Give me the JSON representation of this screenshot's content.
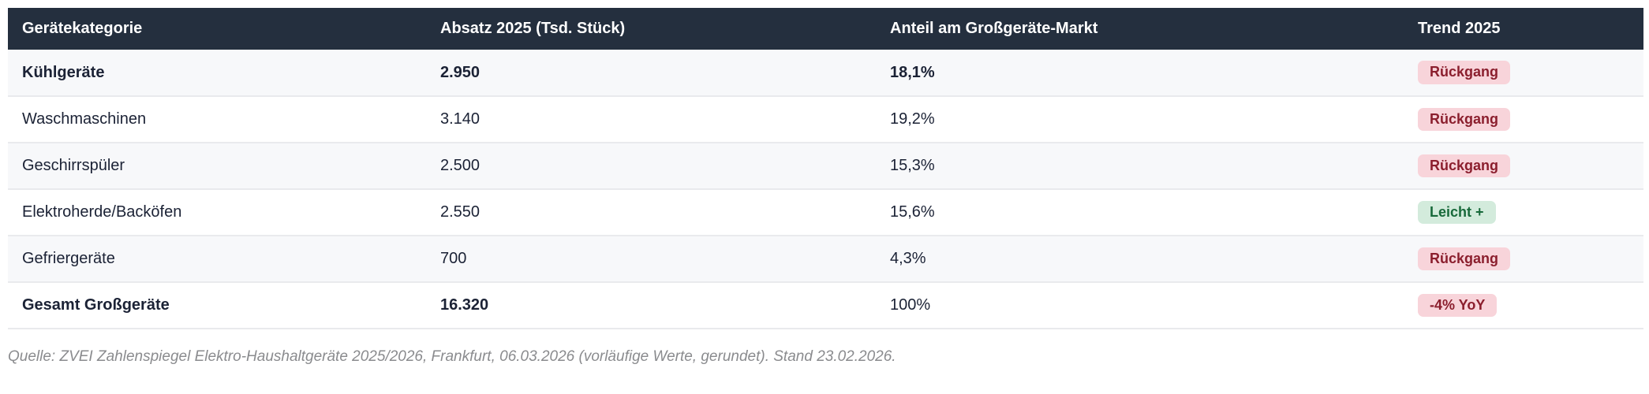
{
  "chart_data": {
    "type": "table",
    "columns": [
      "Gerätekategorie",
      "Absatz 2025 (Tsd. Stück)",
      "Anteil am Großgeräte-Markt",
      "Trend 2025"
    ],
    "rows": [
      {
        "category": "Kühlgeräte",
        "sales_thousand_units": "2.950",
        "market_share": "18,1%",
        "trend": "Rückgang",
        "trend_variant": "negative"
      },
      {
        "category": "Waschmaschinen",
        "sales_thousand_units": "3.140",
        "market_share": "19,2%",
        "trend": "Rückgang",
        "trend_variant": "negative"
      },
      {
        "category": "Geschirrspüler",
        "sales_thousand_units": "2.500",
        "market_share": "15,3%",
        "trend": "Rückgang",
        "trend_variant": "negative"
      },
      {
        "category": "Elektroherde/Backöfen",
        "sales_thousand_units": "2.550",
        "market_share": "15,6%",
        "trend": "Leicht +",
        "trend_variant": "positive"
      },
      {
        "category": "Gefriergeräte",
        "sales_thousand_units": "700",
        "market_share": "4,3%",
        "trend": "Rückgang",
        "trend_variant": "negative"
      },
      {
        "category": "Gesamt Großgeräte",
        "sales_thousand_units": "16.320",
        "market_share": "100%",
        "trend": "-4% YoY",
        "trend_variant": "negative"
      }
    ],
    "source_note": "Quelle: ZVEI Zahlenspiegel Elektro-Haushaltgeräte 2025/2026, Frankfurt, 06.03.2026 (vorläufige Werte, gerundet). Stand 23.02.2026."
  },
  "colors": {
    "header_bg": "#242f3e",
    "header_text": "#ffffff",
    "row_alt_bg": "#f7f8fa",
    "row_divider": "#e9eaed",
    "body_text": "#1b2235",
    "negative_badge_bg": "#f8d4da",
    "negative_badge_text": "#8b1e2d",
    "positive_badge_bg": "#d3ebdc",
    "positive_badge_text": "#17693a",
    "source_text": "#8a8b8e"
  }
}
